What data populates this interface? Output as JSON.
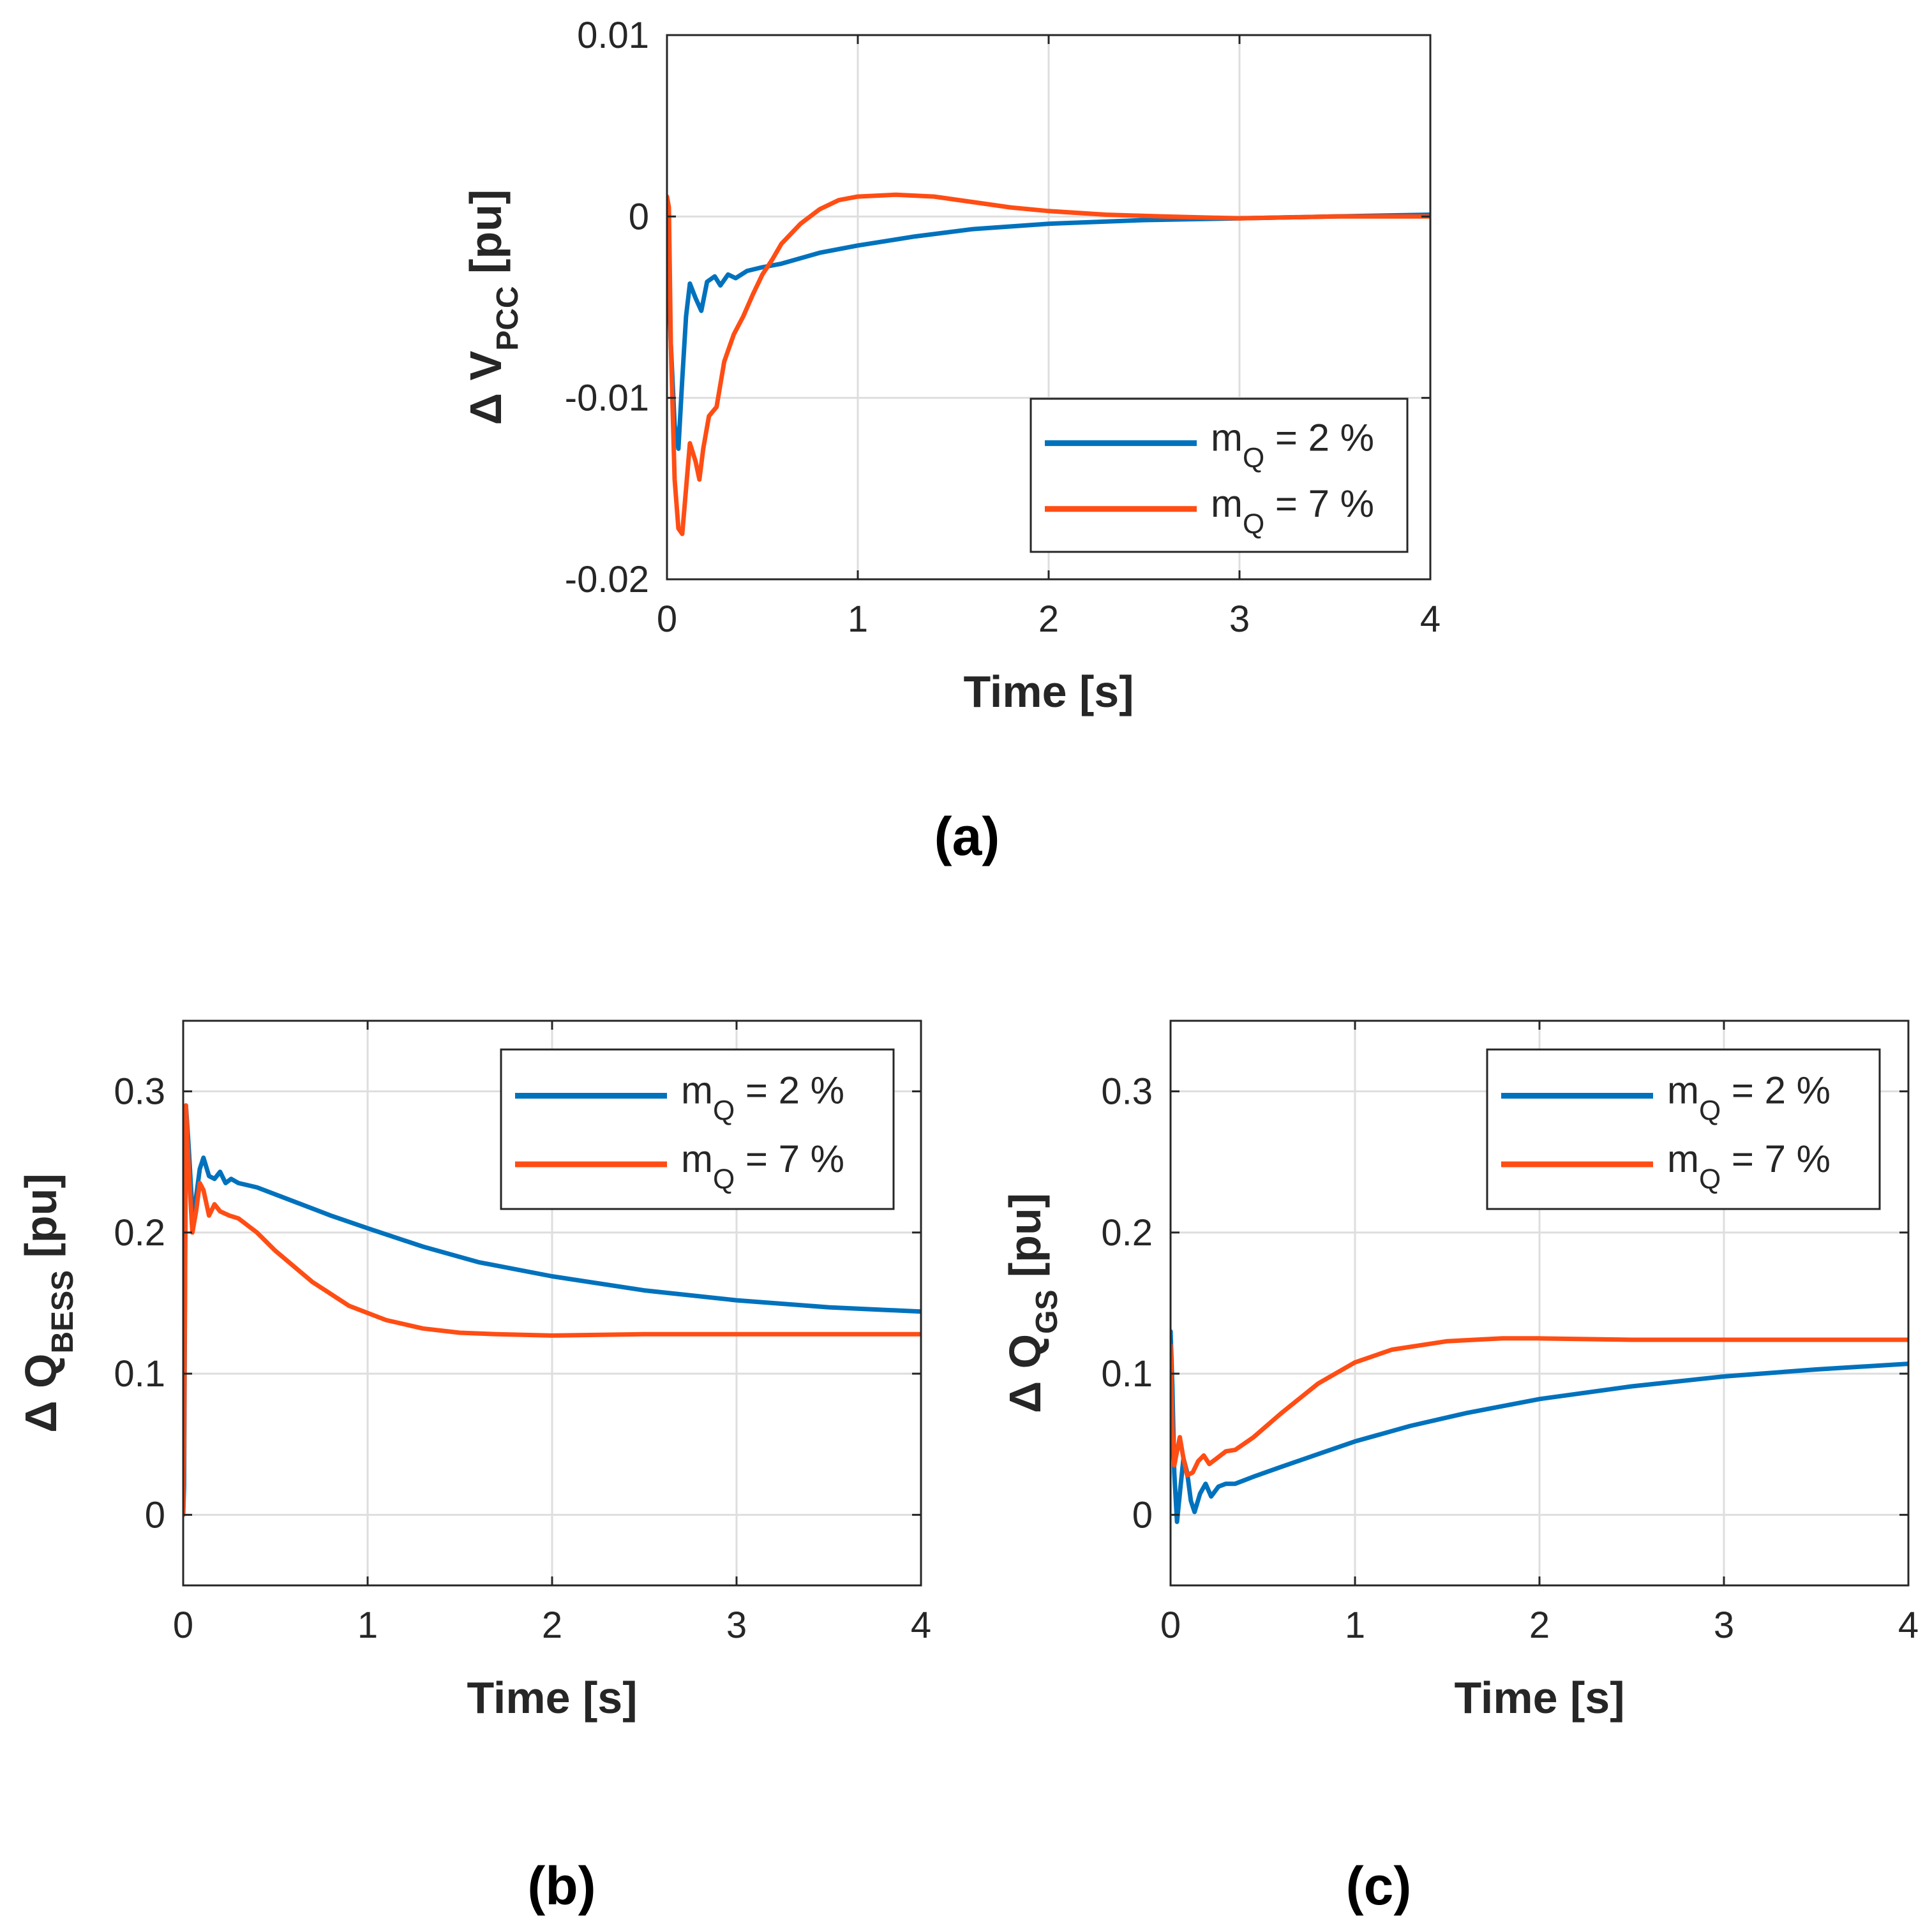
{
  "colors": {
    "blue": "#0072BD",
    "orange": "#FF4D14",
    "grid": "#DEDEDE",
    "axis": "#262626"
  },
  "legend_entries": [
    {
      "base": "m",
      "sub": "Q",
      "rest": " = 2 %",
      "color": "#0072BD"
    },
    {
      "base": "m",
      "sub": "Q",
      "rest": " = 7 %",
      "color": "#FF4D14"
    }
  ],
  "chart_data": [
    {
      "id": "a",
      "type": "line",
      "caption": "(a)",
      "ylabel": {
        "prefix": "Δ V",
        "sub": "PCC",
        "suffix": " [pu]"
      },
      "xlabel": "Time [s]",
      "xlim": [
        0,
        4
      ],
      "ylim": [
        -0.02,
        0.01
      ],
      "xticks": [
        0,
        1,
        2,
        3,
        4
      ],
      "xtick_labels": [
        "0",
        "1",
        "2",
        "3",
        "4"
      ],
      "yticks": [
        -0.02,
        -0.01,
        0,
        0.01
      ],
      "ytick_labels": [
        "-0.02",
        "-0.01",
        "0",
        "0.01"
      ],
      "grid": true,
      "legend_position": "bottom-right",
      "series": [
        {
          "name": "mQ = 2 %",
          "color": "#0072BD",
          "points": [
            [
              0,
              0
            ],
            [
              0.02,
              -0.007
            ],
            [
              0.04,
              -0.0115
            ],
            [
              0.06,
              -0.0128
            ],
            [
              0.08,
              -0.009
            ],
            [
              0.1,
              -0.0055
            ],
            [
              0.12,
              -0.0037
            ],
            [
              0.15,
              -0.0045
            ],
            [
              0.18,
              -0.0052
            ],
            [
              0.21,
              -0.0036
            ],
            [
              0.25,
              -0.0033
            ],
            [
              0.28,
              -0.0038
            ],
            [
              0.32,
              -0.0032
            ],
            [
              0.36,
              -0.0034
            ],
            [
              0.42,
              -0.003
            ],
            [
              0.5,
              -0.0028
            ],
            [
              0.6,
              -0.0026
            ],
            [
              0.8,
              -0.002
            ],
            [
              1.0,
              -0.0016
            ],
            [
              1.3,
              -0.0011
            ],
            [
              1.6,
              -0.0007
            ],
            [
              2.0,
              -0.0004
            ],
            [
              2.5,
              -0.0002
            ],
            [
              3.0,
              -0.0001
            ],
            [
              3.5,
              0
            ],
            [
              4.0,
              0.0001
            ]
          ]
        },
        {
          "name": "mQ = 7 %",
          "color": "#FF4D14",
          "points": [
            [
              0,
              0.0011
            ],
            [
              0.01,
              0.0005
            ],
            [
              0.02,
              -0.007
            ],
            [
              0.04,
              -0.0145
            ],
            [
              0.06,
              -0.0172
            ],
            [
              0.08,
              -0.0175
            ],
            [
              0.1,
              -0.015
            ],
            [
              0.12,
              -0.0125
            ],
            [
              0.15,
              -0.0135
            ],
            [
              0.17,
              -0.0145
            ],
            [
              0.19,
              -0.0128
            ],
            [
              0.22,
              -0.011
            ],
            [
              0.26,
              -0.0105
            ],
            [
              0.3,
              -0.008
            ],
            [
              0.35,
              -0.0065
            ],
            [
              0.4,
              -0.0055
            ],
            [
              0.45,
              -0.0043
            ],
            [
              0.5,
              -0.0032
            ],
            [
              0.55,
              -0.0024
            ],
            [
              0.6,
              -0.0015
            ],
            [
              0.7,
              -0.0004
            ],
            [
              0.8,
              0.0004
            ],
            [
              0.9,
              0.0009
            ],
            [
              1.0,
              0.0011
            ],
            [
              1.2,
              0.0012
            ],
            [
              1.4,
              0.0011
            ],
            [
              1.6,
              0.0008
            ],
            [
              1.8,
              0.0005
            ],
            [
              2.0,
              0.0003
            ],
            [
              2.3,
              0.0001
            ],
            [
              2.6,
              0
            ],
            [
              3.0,
              -0.0001
            ],
            [
              3.5,
              0
            ],
            [
              4.0,
              0
            ]
          ]
        }
      ]
    },
    {
      "id": "b",
      "type": "line",
      "caption": "(b)",
      "ylabel": {
        "prefix": "Δ Q",
        "sub": "BESS",
        "suffix": " [pu]"
      },
      "xlabel": "Time [s]",
      "xlim": [
        0,
        4
      ],
      "ylim": [
        -0.05,
        0.35
      ],
      "xticks": [
        0,
        1,
        2,
        3,
        4
      ],
      "xtick_labels": [
        "0",
        "1",
        "2",
        "3",
        "4"
      ],
      "yticks": [
        0,
        0.1,
        0.2,
        0.3
      ],
      "ytick_labels": [
        "0",
        "0.1",
        "0.2",
        "0.3"
      ],
      "grid": true,
      "legend_position": "top-right",
      "series": [
        {
          "name": "mQ = 2 %",
          "color": "#0072BD",
          "points": [
            [
              0,
              0
            ],
            [
              0.005,
              0.02
            ],
            [
              0.015,
              0.29
            ],
            [
              0.03,
              0.26
            ],
            [
              0.05,
              0.215
            ],
            [
              0.07,
              0.225
            ],
            [
              0.09,
              0.245
            ],
            [
              0.11,
              0.253
            ],
            [
              0.14,
              0.24
            ],
            [
              0.17,
              0.238
            ],
            [
              0.2,
              0.243
            ],
            [
              0.23,
              0.235
            ],
            [
              0.26,
              0.238
            ],
            [
              0.3,
              0.235
            ],
            [
              0.4,
              0.232
            ],
            [
              0.6,
              0.222
            ],
            [
              0.8,
              0.212
            ],
            [
              1.0,
              0.203
            ],
            [
              1.3,
              0.19
            ],
            [
              1.6,
              0.179
            ],
            [
              2.0,
              0.169
            ],
            [
              2.5,
              0.159
            ],
            [
              3.0,
              0.152
            ],
            [
              3.5,
              0.147
            ],
            [
              4.0,
              0.144
            ]
          ]
        },
        {
          "name": "mQ = 7 %",
          "color": "#FF4D14",
          "points": [
            [
              0,
              0
            ],
            [
              0.005,
              0.05
            ],
            [
              0.015,
              0.29
            ],
            [
              0.03,
              0.245
            ],
            [
              0.05,
              0.2
            ],
            [
              0.07,
              0.215
            ],
            [
              0.09,
              0.235
            ],
            [
              0.11,
              0.23
            ],
            [
              0.14,
              0.212
            ],
            [
              0.17,
              0.22
            ],
            [
              0.2,
              0.215
            ],
            [
              0.25,
              0.212
            ],
            [
              0.3,
              0.21
            ],
            [
              0.4,
              0.2
            ],
            [
              0.5,
              0.187
            ],
            [
              0.7,
              0.165
            ],
            [
              0.9,
              0.148
            ],
            [
              1.1,
              0.138
            ],
            [
              1.3,
              0.132
            ],
            [
              1.5,
              0.129
            ],
            [
              1.7,
              0.128
            ],
            [
              2.0,
              0.127
            ],
            [
              2.5,
              0.128
            ],
            [
              3.0,
              0.128
            ],
            [
              3.5,
              0.128
            ],
            [
              4.0,
              0.128
            ]
          ]
        }
      ]
    },
    {
      "id": "c",
      "type": "line",
      "caption": "(c)",
      "ylabel": {
        "prefix": "Δ Q",
        "sub": "GS",
        "suffix": " [pu]"
      },
      "xlabel": "Time [s]",
      "xlim": [
        0,
        4
      ],
      "ylim": [
        -0.05,
        0.35
      ],
      "xticks": [
        0,
        1,
        2,
        3,
        4
      ],
      "xtick_labels": [
        "0",
        "1",
        "2",
        "3",
        "4"
      ],
      "yticks": [
        0,
        0.1,
        0.2,
        0.3
      ],
      "ytick_labels": [
        "0",
        "0.1",
        "0.2",
        "0.3"
      ],
      "grid": true,
      "legend_position": "top-right",
      "series": [
        {
          "name": "mQ = 2 %",
          "color": "#0072BD",
          "points": [
            [
              0,
              0.13
            ],
            [
              0.01,
              0.09
            ],
            [
              0.02,
              0.03
            ],
            [
              0.035,
              -0.005
            ],
            [
              0.05,
              0.015
            ],
            [
              0.07,
              0.04
            ],
            [
              0.09,
              0.03
            ],
            [
              0.11,
              0.01
            ],
            [
              0.13,
              0.002
            ],
            [
              0.16,
              0.015
            ],
            [
              0.19,
              0.022
            ],
            [
              0.22,
              0.013
            ],
            [
              0.26,
              0.02
            ],
            [
              0.3,
              0.022
            ],
            [
              0.35,
              0.022
            ],
            [
              0.45,
              0.027
            ],
            [
              0.6,
              0.034
            ],
            [
              0.8,
              0.043
            ],
            [
              1.0,
              0.052
            ],
            [
              1.3,
              0.063
            ],
            [
              1.6,
              0.072
            ],
            [
              2.0,
              0.082
            ],
            [
              2.5,
              0.091
            ],
            [
              3.0,
              0.098
            ],
            [
              3.5,
              0.103
            ],
            [
              4.0,
              0.107
            ]
          ]
        },
        {
          "name": "mQ = 7 %",
          "color": "#FF4D14",
          "points": [
            [
              0,
              0.12
            ],
            [
              0.01,
              0.06
            ],
            [
              0.02,
              0.035
            ],
            [
              0.035,
              0.045
            ],
            [
              0.05,
              0.055
            ],
            [
              0.07,
              0.04
            ],
            [
              0.09,
              0.028
            ],
            [
              0.12,
              0.03
            ],
            [
              0.15,
              0.038
            ],
            [
              0.18,
              0.042
            ],
            [
              0.21,
              0.036
            ],
            [
              0.25,
              0.04
            ],
            [
              0.3,
              0.045
            ],
            [
              0.35,
              0.046
            ],
            [
              0.45,
              0.055
            ],
            [
              0.6,
              0.072
            ],
            [
              0.8,
              0.093
            ],
            [
              1.0,
              0.108
            ],
            [
              1.2,
              0.117
            ],
            [
              1.5,
              0.123
            ],
            [
              1.8,
              0.125
            ],
            [
              2.0,
              0.125
            ],
            [
              2.5,
              0.124
            ],
            [
              3.0,
              0.124
            ],
            [
              3.5,
              0.124
            ],
            [
              4.0,
              0.124
            ]
          ]
        }
      ]
    }
  ]
}
